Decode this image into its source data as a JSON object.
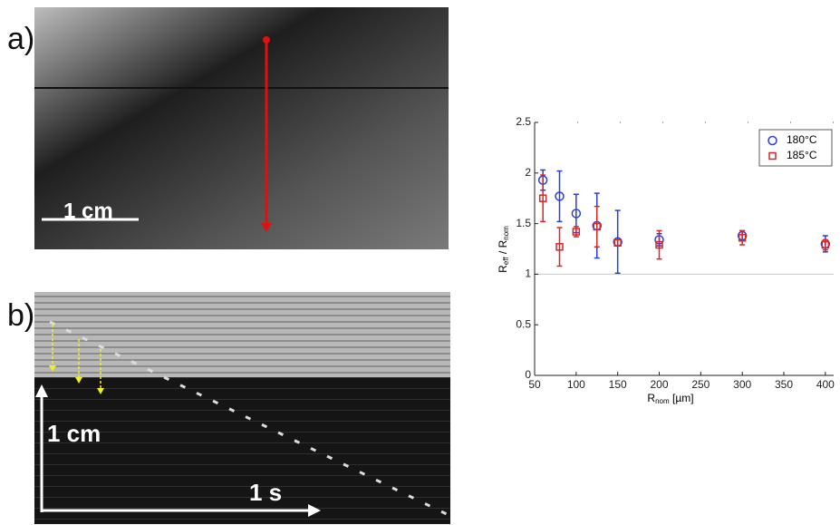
{
  "panels": {
    "a": {
      "label": "a)",
      "scale": "1 cm"
    },
    "b": {
      "label": "b)",
      "scale_y": "1 cm",
      "scale_x": "1 s"
    }
  },
  "chart_data": {
    "type": "errorbar-scatter",
    "x_label": {
      "main": "R",
      "sub": "nom",
      "unit": " [µm]"
    },
    "y_label": {
      "main": "R",
      "sub": "eff",
      "mid": " / R",
      "sub2": "nom"
    },
    "x": [
      60,
      80,
      100,
      125,
      150,
      200,
      300,
      400
    ],
    "series": [
      {
        "name": "180°C",
        "color": "#2b3fd6",
        "marker": "circle",
        "values": [
          1.93,
          1.77,
          1.6,
          1.48,
          1.32,
          1.34,
          1.38,
          1.3
        ],
        "errors": [
          0.1,
          0.25,
          0.19,
          0.32,
          0.31,
          0.06,
          0.05,
          0.08
        ]
      },
      {
        "name": "185°C",
        "color": "#d62728",
        "marker": "square",
        "values": [
          1.75,
          1.27,
          1.42,
          1.47,
          1.31,
          1.29,
          1.36,
          1.29
        ],
        "errors": [
          0.23,
          0.19,
          0.05,
          0.2,
          0.03,
          0.14,
          0.07,
          0.05
        ]
      }
    ],
    "xlim": [
      50,
      410
    ],
    "ylim": [
      0,
      2.5
    ],
    "xticks": [
      50,
      100,
      150,
      200,
      250,
      300,
      350,
      400
    ],
    "yticks": [
      0,
      0.5,
      1,
      1.5,
      2,
      2.5
    ],
    "reference_line": 1,
    "legend": "top-right"
  }
}
